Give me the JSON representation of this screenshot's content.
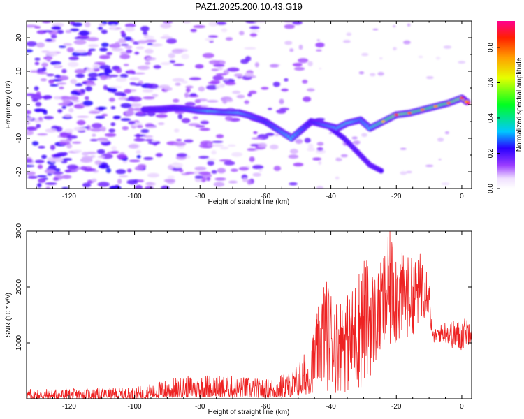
{
  "title": "PAZ1.2025.200.10.43.G19",
  "chart_data": [
    {
      "type": "heatmap",
      "xlabel": "Height of straight line (km)",
      "ylabel": "Frequency (Hz)",
      "xlim": [
        -133,
        3
      ],
      "ylim": [
        -25,
        25
      ],
      "xticks": [
        -120,
        -100,
        -80,
        -60,
        -40,
        -20,
        0
      ],
      "yticks": [
        -20,
        -10,
        0,
        10,
        20
      ],
      "colorbar": {
        "label": "Normalized spectral amplitude",
        "range": [
          0.0,
          0.95
        ],
        "ticks": [
          0.0,
          0.2,
          0.4,
          0.6,
          0.8
        ]
      },
      "ridge": [
        {
          "x": -97,
          "y": -1.5,
          "amp": 0.22
        },
        {
          "x": -92,
          "y": -1.3,
          "amp": 0.25
        },
        {
          "x": -88,
          "y": -1.0,
          "amp": 0.24
        },
        {
          "x": -84,
          "y": -1.2,
          "amp": 0.27
        },
        {
          "x": -80,
          "y": -1.8,
          "amp": 0.3
        },
        {
          "x": -76,
          "y": -2.0,
          "amp": 0.36
        },
        {
          "x": -73,
          "y": -2.2,
          "amp": 0.3
        },
        {
          "x": -68,
          "y": -2.4,
          "amp": 0.34
        },
        {
          "x": -65,
          "y": -3.2,
          "amp": 0.3
        },
        {
          "x": -60,
          "y": -5.0,
          "amp": 0.26
        },
        {
          "x": -56,
          "y": -7.5,
          "amp": 0.3
        },
        {
          "x": -52,
          "y": -10.0,
          "amp": 0.34
        },
        {
          "x": -46,
          "y": -5.0,
          "amp": 0.24
        },
        {
          "x": -42,
          "y": -6.0,
          "amp": 0.3
        },
        {
          "x": -38,
          "y": -7.0,
          "amp": 0.33
        },
        {
          "x": -35,
          "y": -5.5,
          "amp": 0.36
        },
        {
          "x": -31,
          "y": -4.5,
          "amp": 0.3
        },
        {
          "x": -28,
          "y": -7.0,
          "amp": 0.34
        },
        {
          "x": -24,
          "y": -5.0,
          "amp": 0.45
        },
        {
          "x": -20,
          "y": -3.0,
          "amp": 0.6
        },
        {
          "x": -16,
          "y": -2.5,
          "amp": 0.55
        },
        {
          "x": -12,
          "y": -1.5,
          "amp": 0.52
        },
        {
          "x": -8,
          "y": -0.5,
          "amp": 0.5
        },
        {
          "x": -4,
          "y": 0.5,
          "amp": 0.55
        },
        {
          "x": 0,
          "y": 2.0,
          "amp": 0.6
        },
        {
          "x": 2,
          "y": 0.5,
          "amp": 0.85
        }
      ],
      "secondary_branch": [
        {
          "x": -40,
          "y": -7.0,
          "amp": 0.24
        },
        {
          "x": -36,
          "y": -10.0,
          "amp": 0.22
        },
        {
          "x": -32,
          "y": -14.0,
          "amp": 0.2
        },
        {
          "x": -28,
          "y": -18.0,
          "amp": 0.2
        },
        {
          "x": -24,
          "y": -20.0,
          "amp": 0.22
        }
      ]
    },
    {
      "type": "line",
      "xlabel": "Height of straight line (km)",
      "ylabel": "SNR (10 * v/v)",
      "xlim": [
        -133,
        3
      ],
      "ylim": [
        0,
        3000
      ],
      "xticks": [
        -120,
        -100,
        -80,
        -60,
        -40,
        -20,
        0
      ],
      "yticks": [
        1000,
        2000,
        3000
      ],
      "color": "#ee2222",
      "envelope": [
        {
          "x": -133,
          "lo": 0,
          "hi": 180
        },
        {
          "x": -120,
          "lo": 0,
          "hi": 180
        },
        {
          "x": -100,
          "lo": 0,
          "hi": 200
        },
        {
          "x": -90,
          "lo": 20,
          "hi": 350
        },
        {
          "x": -80,
          "lo": 30,
          "hi": 450
        },
        {
          "x": -70,
          "lo": 30,
          "hi": 420
        },
        {
          "x": -60,
          "lo": 20,
          "hi": 350
        },
        {
          "x": -52,
          "lo": 30,
          "hi": 500
        },
        {
          "x": -46,
          "lo": 100,
          "hi": 1000
        },
        {
          "x": -42,
          "lo": 150,
          "hi": 2200
        },
        {
          "x": -38,
          "lo": 100,
          "hi": 1800
        },
        {
          "x": -34,
          "lo": 100,
          "hi": 1900
        },
        {
          "x": -30,
          "lo": 150,
          "hi": 2600
        },
        {
          "x": -26,
          "lo": 600,
          "hi": 2200
        },
        {
          "x": -22,
          "lo": 800,
          "hi": 3000
        },
        {
          "x": -18,
          "lo": 1000,
          "hi": 2600
        },
        {
          "x": -14,
          "lo": 1200,
          "hi": 2500
        },
        {
          "x": -12,
          "lo": 1400,
          "hi": 2700
        },
        {
          "x": -10,
          "lo": 1500,
          "hi": 2300
        },
        {
          "x": -9,
          "lo": 1000,
          "hi": 1200
        },
        {
          "x": -5,
          "lo": 1000,
          "hi": 1400
        },
        {
          "x": -1,
          "lo": 800,
          "hi": 1400
        },
        {
          "x": 3,
          "lo": 1000,
          "hi": 1500
        }
      ]
    }
  ]
}
